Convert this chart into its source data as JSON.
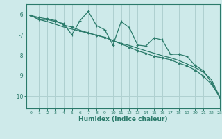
{
  "xlabel": "Humidex (Indice chaleur)",
  "xlim": [
    -0.5,
    23
  ],
  "ylim": [
    -10.6,
    -5.5
  ],
  "yticks": [
    -10,
    -9,
    -8,
    -7,
    -6
  ],
  "xticks": [
    0,
    1,
    2,
    3,
    4,
    5,
    6,
    7,
    8,
    9,
    10,
    11,
    12,
    13,
    14,
    15,
    16,
    17,
    18,
    19,
    20,
    21,
    22,
    23
  ],
  "bg_color": "#ceeaea",
  "grid_color": "#afd0d0",
  "line_color": "#2a7a6a",
  "line1_y": [
    -6.05,
    -6.25,
    -6.25,
    -6.35,
    -6.45,
    -7.0,
    -6.3,
    -5.85,
    -6.55,
    -6.75,
    -7.5,
    -6.35,
    -6.65,
    -7.5,
    -7.55,
    -7.15,
    -7.25,
    -7.95,
    -7.95,
    -8.05,
    -8.5,
    -8.75,
    -9.35,
    -10.05
  ],
  "line2_y": [
    -6.05,
    -6.25,
    -6.35,
    -6.48,
    -6.62,
    -6.72,
    -6.82,
    -6.92,
    -7.02,
    -7.12,
    -7.28,
    -7.42,
    -7.52,
    -7.65,
    -7.78,
    -7.9,
    -8.02,
    -8.12,
    -8.25,
    -8.42,
    -8.6,
    -8.82,
    -9.2,
    -10.05
  ],
  "line3_y": [
    -6.05,
    -6.15,
    -6.22,
    -6.3,
    -6.52,
    -6.62,
    -6.78,
    -6.9,
    -7.02,
    -7.12,
    -7.28,
    -7.45,
    -7.6,
    -7.78,
    -7.9,
    -8.05,
    -8.12,
    -8.22,
    -8.38,
    -8.52,
    -8.72,
    -9.02,
    -9.42,
    -10.05
  ]
}
